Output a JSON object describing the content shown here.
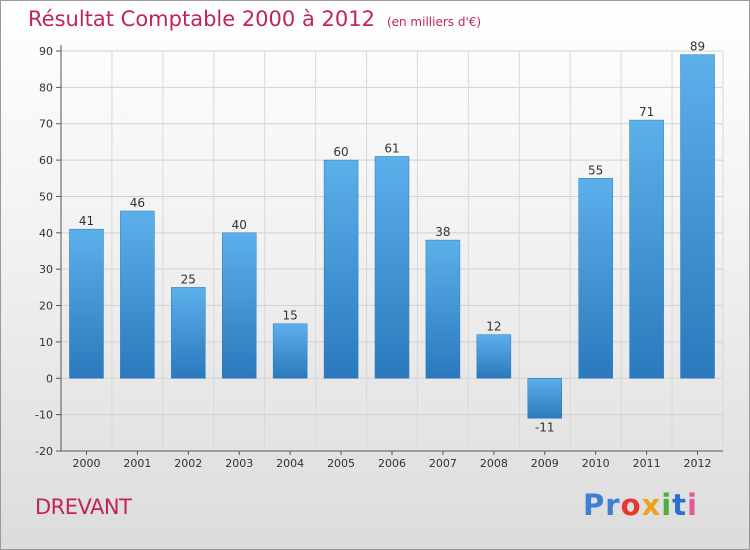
{
  "title": "Résultat Comptable 2000 à 2012",
  "subtitle": "(en milliers d'€)",
  "city": "DREVANT",
  "brand": {
    "p1": "Pr",
    "p2": "o",
    "p3": "x",
    "p4": "i",
    "p5": "t",
    "p6": "i"
  },
  "colors": {
    "accent": "#c0245a",
    "bar_top": "#5cb0ea",
    "bar_bottom": "#2a79bd"
  },
  "chart_data": {
    "type": "bar",
    "title": "Résultat Comptable 2000 à 2012",
    "subtitle": "(en milliers d'€)",
    "categories": [
      "2000",
      "2001",
      "2002",
      "2003",
      "2004",
      "2005",
      "2006",
      "2007",
      "2008",
      "2009",
      "2010",
      "2011",
      "2012"
    ],
    "values": [
      41,
      46,
      25,
      40,
      15,
      60,
      61,
      38,
      12,
      -11,
      55,
      71,
      89
    ],
    "labels": [
      "41",
      "46",
      "25",
      "40",
      "15",
      "60",
      "61",
      "38",
      "12",
      "-11",
      "55",
      "71",
      "89"
    ],
    "yticks": [
      -20,
      -10,
      0,
      10,
      20,
      30,
      40,
      50,
      60,
      70,
      80,
      90
    ],
    "ylim": [
      -20,
      90
    ],
    "xlabel": "",
    "ylabel": "",
    "grid": true
  }
}
